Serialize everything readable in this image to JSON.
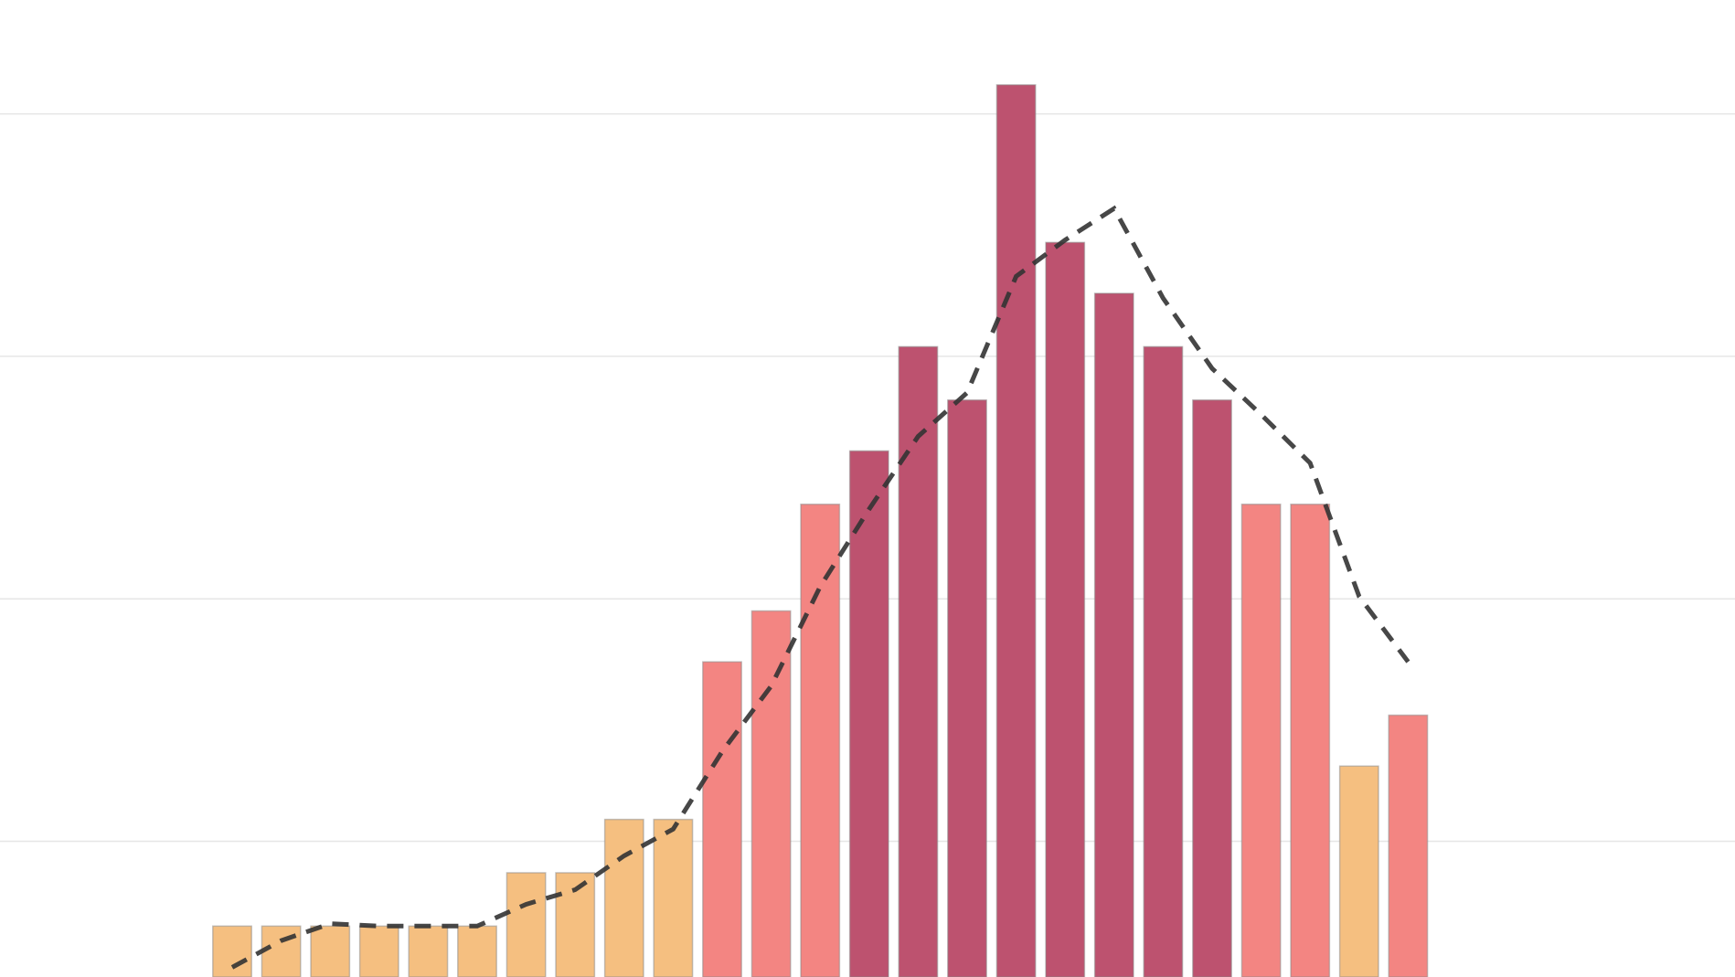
{
  "chart_data": {
    "type": "bar",
    "categories": [
      null,
      null,
      null,
      null,
      null,
      null,
      null,
      null,
      null,
      null,
      null,
      null,
      null,
      null,
      null,
      null,
      null,
      null,
      null,
      null,
      null,
      null,
      null,
      null,
      null
    ],
    "values": [
      0.65,
      0.65,
      0.65,
      0.65,
      0.65,
      0.65,
      0.87,
      0.87,
      1.09,
      1.09,
      1.74,
      1.95,
      2.39,
      2.61,
      3.04,
      2.82,
      4.12,
      3.47,
      3.26,
      3.04,
      2.82,
      2.39,
      2.39,
      1.31,
      1.52
    ],
    "colors": [
      "#f5bf80",
      "#f5bf80",
      "#f5bf80",
      "#f5bf80",
      "#f5bf80",
      "#f5bf80",
      "#f5bf80",
      "#f5bf80",
      "#f5bf80",
      "#f5bf80",
      "#f38582",
      "#f38582",
      "#f38582",
      "#bd526f",
      "#bd526f",
      "#bd526f",
      "#bd526f",
      "#bd526f",
      "#bd526f",
      "#bd526f",
      "#bd526f",
      "#f38582",
      "#f38582",
      "#f5bf80",
      "#f38582"
    ],
    "trend": {
      "values": [
        0.48,
        0.59,
        0.66,
        0.65,
        0.65,
        0.65,
        0.74,
        0.8,
        0.94,
        1.05,
        1.37,
        1.64,
        2.05,
        2.37,
        2.67,
        2.85,
        3.33,
        3.48,
        3.61,
        3.24,
        2.95,
        2.76,
        2.56,
        2.01,
        1.74
      ],
      "color": "#333333",
      "dashed": true
    },
    "ylim": [
      0.44,
      4.47
    ],
    "yticks": [
      1,
      2,
      3,
      4
    ],
    "grid": true
  }
}
